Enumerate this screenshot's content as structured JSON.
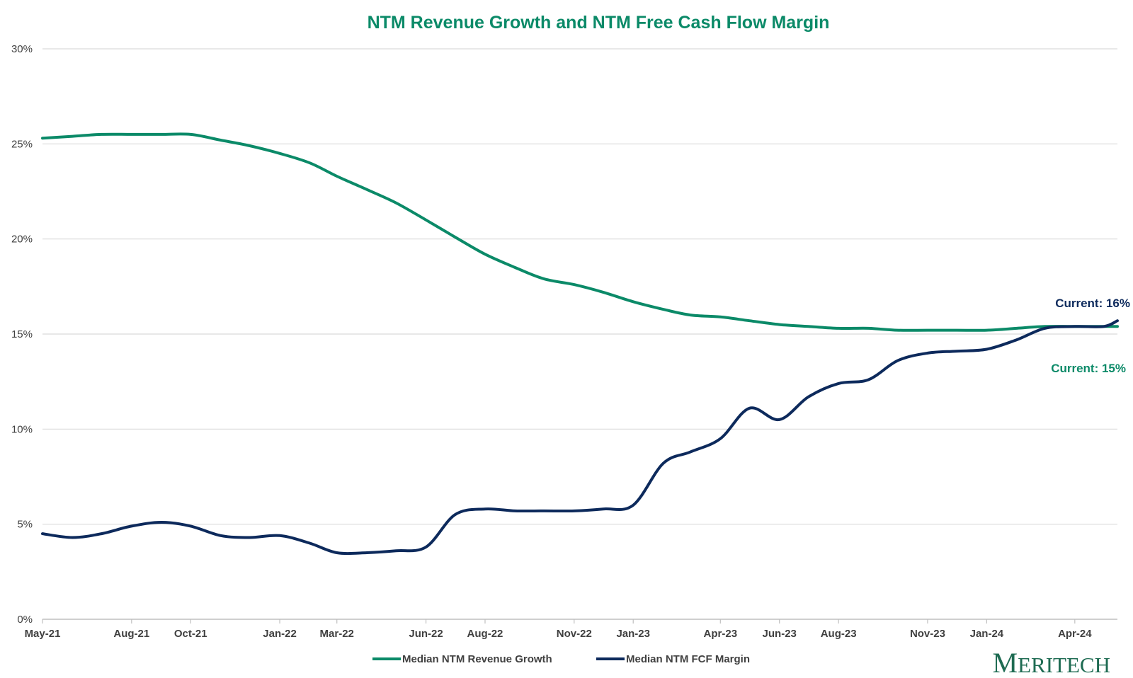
{
  "colors": {
    "revenue_growth": "#0b8a68",
    "fcf_margin": "#0d2a5c",
    "title": "#0b8a68",
    "gridline": "#d9d9d9",
    "axis": "#bfbfbf",
    "logo": "#1e6b52"
  },
  "logo": {
    "first": "M",
    "rest": "ERITECH"
  },
  "chart_data": {
    "type": "line",
    "title": "NTM Revenue Growth and NTM Free Cash Flow Margin",
    "xlabel": "",
    "ylabel": "",
    "ylim": [
      0,
      30
    ],
    "grid": true,
    "legend_position": "bottom",
    "y_ticks": [
      0,
      5,
      10,
      15,
      20,
      25,
      30
    ],
    "y_tick_labels": [
      "0%",
      "5%",
      "10%",
      "15%",
      "20%",
      "25%",
      "30%"
    ],
    "x_tick_labels": [
      "May-21",
      "Aug-21",
      "Oct-21",
      "Jan-22",
      "Mar-22",
      "Jun-22",
      "Aug-22",
      "Nov-22",
      "Jan-23",
      "Apr-23",
      "Jun-23",
      "Aug-23",
      "Nov-23",
      "Jan-24",
      "Apr-24"
    ],
    "x_ticks": [
      "2021-05-01",
      "2021-08-01",
      "2021-10-01",
      "2022-01-01",
      "2022-03-01",
      "2022-06-01",
      "2022-08-01",
      "2022-11-01",
      "2023-01-01",
      "2023-04-01",
      "2023-06-01",
      "2023-08-01",
      "2023-11-01",
      "2024-01-01",
      "2024-04-01"
    ],
    "x_range": [
      "2021-05-01",
      "2024-05-15"
    ],
    "series": [
      {
        "name": "Median NTM Revenue Growth",
        "color": "#0b8a68",
        "x": [
          "2021-05-01",
          "2021-06-01",
          "2021-07-01",
          "2021-08-01",
          "2021-09-01",
          "2021-10-01",
          "2021-11-01",
          "2021-12-01",
          "2022-01-01",
          "2022-02-01",
          "2022-03-01",
          "2022-04-01",
          "2022-05-01",
          "2022-06-01",
          "2022-07-01",
          "2022-08-01",
          "2022-09-01",
          "2022-10-01",
          "2022-11-01",
          "2022-12-01",
          "2023-01-01",
          "2023-02-01",
          "2023-03-01",
          "2023-04-01",
          "2023-05-01",
          "2023-06-01",
          "2023-07-01",
          "2023-08-01",
          "2023-09-01",
          "2023-10-01",
          "2023-11-01",
          "2023-12-01",
          "2024-01-01",
          "2024-02-01",
          "2024-03-01",
          "2024-04-01",
          "2024-05-15"
        ],
        "values": [
          25.3,
          25.4,
          25.5,
          25.5,
          25.5,
          25.5,
          25.2,
          24.9,
          24.5,
          24.0,
          23.3,
          22.6,
          21.9,
          21.0,
          20.1,
          19.2,
          18.5,
          17.9,
          17.6,
          17.2,
          16.7,
          16.3,
          16.0,
          15.9,
          15.7,
          15.5,
          15.4,
          15.3,
          15.3,
          15.2,
          15.2,
          15.2,
          15.2,
          15.3,
          15.4,
          15.4,
          15.4
        ]
      },
      {
        "name": "Median NTM FCF Margin",
        "color": "#0d2a5c",
        "x": [
          "2021-05-01",
          "2021-06-01",
          "2021-07-01",
          "2021-08-01",
          "2021-09-01",
          "2021-10-01",
          "2021-11-01",
          "2021-12-01",
          "2022-01-01",
          "2022-02-01",
          "2022-03-01",
          "2022-04-01",
          "2022-05-01",
          "2022-06-01",
          "2022-07-01",
          "2022-08-01",
          "2022-09-01",
          "2022-10-01",
          "2022-11-01",
          "2022-12-01",
          "2023-01-01",
          "2023-02-01",
          "2023-03-01",
          "2023-04-01",
          "2023-05-01",
          "2023-06-01",
          "2023-07-01",
          "2023-08-01",
          "2023-09-01",
          "2023-10-01",
          "2023-11-01",
          "2023-12-01",
          "2024-01-01",
          "2024-02-01",
          "2024-03-01",
          "2024-04-01",
          "2024-05-01",
          "2024-05-15"
        ],
        "values": [
          4.5,
          4.3,
          4.5,
          4.9,
          5.1,
          4.9,
          4.4,
          4.3,
          4.4,
          4.0,
          3.5,
          3.5,
          3.6,
          3.8,
          5.5,
          5.8,
          5.7,
          5.7,
          5.7,
          5.8,
          6.0,
          8.2,
          8.8,
          9.5,
          11.1,
          10.5,
          11.7,
          12.4,
          12.6,
          13.6,
          14.0,
          14.1,
          14.2,
          14.7,
          15.3,
          15.4,
          15.4,
          15.7
        ]
      }
    ],
    "annotations": [
      {
        "text": "Current: 16%",
        "series": "Median NTM FCF Margin"
      },
      {
        "text": "Current: 15%",
        "series": "Median NTM Revenue Growth"
      }
    ]
  }
}
